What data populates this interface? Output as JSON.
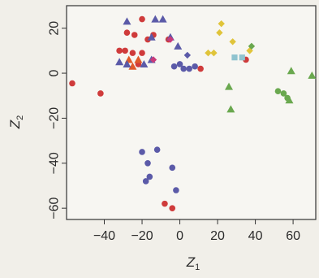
{
  "chart_data": {
    "type": "scatter",
    "title": "",
    "xlabel": "Z",
    "xlabel_sub": "1",
    "ylabel": "Z",
    "ylabel_sub": "2",
    "xlim": [
      -60,
      72
    ],
    "ylim": [
      -65,
      30
    ],
    "xticks": [
      -40,
      -20,
      0,
      20,
      40,
      60
    ],
    "yticks": [
      -60,
      -40,
      -20,
      0,
      20
    ],
    "xtick_labels": [
      "−40",
      "−20",
      "0",
      "20",
      "40",
      "60"
    ],
    "ytick_labels": [
      "−60",
      "−40",
      "−20",
      "0",
      "20"
    ],
    "grid": false,
    "legend": "none",
    "series": [
      {
        "color": "#cf3b3b",
        "points": [
          {
            "x": -57,
            "y": -4.5,
            "shape": "circle"
          },
          {
            "x": -42,
            "y": -9,
            "shape": "circle"
          },
          {
            "x": -28,
            "y": 18,
            "shape": "circle"
          },
          {
            "x": -24,
            "y": 17,
            "shape": "circle"
          },
          {
            "x": -20,
            "y": 24,
            "shape": "circle"
          },
          {
            "x": -17,
            "y": 15,
            "shape": "circle"
          },
          {
            "x": -14,
            "y": 17,
            "shape": "circle"
          },
          {
            "x": -32,
            "y": 10,
            "shape": "circle"
          },
          {
            "x": -29,
            "y": 10,
            "shape": "circle"
          },
          {
            "x": -25,
            "y": 9,
            "shape": "circle"
          },
          {
            "x": -20,
            "y": 9,
            "shape": "circle"
          },
          {
            "x": -22,
            "y": 4,
            "shape": "circle"
          },
          {
            "x": -6,
            "y": 15,
            "shape": "circle"
          },
          {
            "x": 11,
            "y": 2,
            "shape": "circle"
          },
          {
            "x": 35,
            "y": 6,
            "shape": "circle"
          },
          {
            "x": -8,
            "y": -58,
            "shape": "circle"
          },
          {
            "x": -4,
            "y": -60,
            "shape": "circle"
          }
        ]
      },
      {
        "color": "#e05a2a",
        "points": [
          {
            "x": -27,
            "y": 6,
            "shape": "triangle"
          },
          {
            "x": -22,
            "y": 6,
            "shape": "triangle"
          },
          {
            "x": -25,
            "y": 3,
            "shape": "triangle"
          }
        ]
      },
      {
        "color": "#5b5aa8",
        "points": [
          {
            "x": -28,
            "y": 23,
            "shape": "triangle"
          },
          {
            "x": -13,
            "y": 24,
            "shape": "triangle"
          },
          {
            "x": -9,
            "y": 24,
            "shape": "triangle"
          },
          {
            "x": -15,
            "y": 16,
            "shape": "triangle"
          },
          {
            "x": -5,
            "y": 16,
            "shape": "triangle"
          },
          {
            "x": -32,
            "y": 5,
            "shape": "triangle"
          },
          {
            "x": -28,
            "y": 4,
            "shape": "triangle"
          },
          {
            "x": -19,
            "y": 4,
            "shape": "triangle"
          },
          {
            "x": -15,
            "y": 6,
            "shape": "triangle"
          },
          {
            "x": -1,
            "y": 12,
            "shape": "triangle"
          },
          {
            "x": -3,
            "y": 3,
            "shape": "circle"
          },
          {
            "x": 0,
            "y": 4,
            "shape": "circle"
          },
          {
            "x": 2,
            "y": 2,
            "shape": "circle"
          },
          {
            "x": 5,
            "y": 2,
            "shape": "circle"
          },
          {
            "x": 8,
            "y": 3,
            "shape": "circle"
          },
          {
            "x": 4,
            "y": 8,
            "shape": "diamond"
          },
          {
            "x": -20,
            "y": -35,
            "shape": "circle"
          },
          {
            "x": -12,
            "y": -34,
            "shape": "circle"
          },
          {
            "x": -17,
            "y": -40,
            "shape": "circle"
          },
          {
            "x": -16,
            "y": -46,
            "shape": "circle"
          },
          {
            "x": -18,
            "y": -48,
            "shape": "circle"
          },
          {
            "x": -4,
            "y": -42,
            "shape": "circle"
          },
          {
            "x": -2,
            "y": -52,
            "shape": "circle"
          }
        ]
      },
      {
        "color": "#c93a7a",
        "points": [
          {
            "x": -14,
            "y": 6,
            "shape": "diamond"
          },
          {
            "x": -5,
            "y": 15,
            "shape": "diamond"
          }
        ]
      },
      {
        "color": "#e0c43a",
        "points": [
          {
            "x": 21,
            "y": 18,
            "shape": "diamond"
          },
          {
            "x": 28,
            "y": 14,
            "shape": "diamond"
          },
          {
            "x": 18,
            "y": 9,
            "shape": "diamond"
          },
          {
            "x": 15,
            "y": 9,
            "shape": "diamond"
          },
          {
            "x": 22,
            "y": 22,
            "shape": "diamond"
          },
          {
            "x": 37,
            "y": 10,
            "shape": "diamond"
          }
        ]
      },
      {
        "color": "#8fc3cf",
        "points": [
          {
            "x": 29,
            "y": 7,
            "shape": "square"
          },
          {
            "x": 33,
            "y": 7,
            "shape": "square"
          }
        ]
      },
      {
        "color": "#6aa84f",
        "points": [
          {
            "x": 38,
            "y": 12,
            "shape": "diamond"
          },
          {
            "x": 59,
            "y": 1,
            "shape": "triangle"
          },
          {
            "x": 70,
            "y": -1,
            "shape": "triangle"
          },
          {
            "x": 26,
            "y": -6,
            "shape": "triangle"
          },
          {
            "x": 27,
            "y": -16,
            "shape": "triangle"
          },
          {
            "x": 52,
            "y": -8,
            "shape": "circle"
          },
          {
            "x": 55,
            "y": -9,
            "shape": "circle"
          },
          {
            "x": 57,
            "y": -11,
            "shape": "circle"
          },
          {
            "x": 58,
            "y": -12,
            "shape": "triangle"
          }
        ]
      }
    ]
  }
}
